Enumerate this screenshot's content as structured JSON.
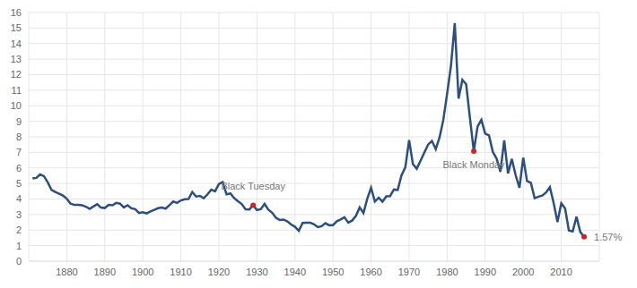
{
  "chart_data": {
    "type": "line",
    "x": [
      1871,
      1872,
      1873,
      1874,
      1875,
      1876,
      1877,
      1878,
      1879,
      1880,
      1881,
      1882,
      1883,
      1884,
      1885,
      1886,
      1887,
      1888,
      1889,
      1890,
      1891,
      1892,
      1893,
      1894,
      1895,
      1896,
      1897,
      1898,
      1899,
      1900,
      1901,
      1902,
      1903,
      1904,
      1905,
      1906,
      1907,
      1908,
      1909,
      1910,
      1911,
      1912,
      1913,
      1914,
      1915,
      1916,
      1917,
      1918,
      1919,
      1920,
      1921,
      1922,
      1923,
      1924,
      1925,
      1926,
      1927,
      1928,
      1929,
      1930,
      1931,
      1932,
      1933,
      1934,
      1935,
      1936,
      1937,
      1938,
      1939,
      1940,
      1941,
      1942,
      1943,
      1944,
      1945,
      1946,
      1947,
      1948,
      1949,
      1950,
      1951,
      1952,
      1953,
      1954,
      1955,
      1956,
      1957,
      1958,
      1959,
      1960,
      1961,
      1962,
      1963,
      1964,
      1965,
      1966,
      1967,
      1968,
      1969,
      1970,
      1971,
      1972,
      1973,
      1974,
      1975,
      1976,
      1977,
      1978,
      1979,
      1980,
      1981,
      1982,
      1983,
      1984,
      1985,
      1986,
      1987,
      1988,
      1989,
      1990,
      1991,
      1992,
      1993,
      1994,
      1995,
      1996,
      1997,
      1998,
      1999,
      2000,
      2001,
      2002,
      2003,
      2004,
      2005,
      2006,
      2007,
      2008,
      2009,
      2010,
      2011,
      2012,
      2013,
      2014,
      2015,
      2016
    ],
    "values": [
      5.32,
      5.36,
      5.58,
      5.47,
      5.07,
      4.59,
      4.45,
      4.34,
      4.22,
      4.02,
      3.7,
      3.62,
      3.63,
      3.6,
      3.51,
      3.37,
      3.52,
      3.67,
      3.45,
      3.42,
      3.62,
      3.6,
      3.75,
      3.7,
      3.46,
      3.6,
      3.4,
      3.35,
      3.1,
      3.15,
      3.07,
      3.2,
      3.3,
      3.41,
      3.45,
      3.38,
      3.6,
      3.84,
      3.75,
      3.91,
      3.98,
      4.0,
      4.45,
      4.16,
      4.2,
      4.05,
      4.3,
      4.6,
      4.5,
      4.97,
      5.09,
      4.3,
      4.36,
      4.06,
      3.86,
      3.68,
      3.34,
      3.33,
      3.6,
      3.29,
      3.34,
      3.68,
      3.31,
      3.12,
      2.79,
      2.65,
      2.68,
      2.56,
      2.36,
      2.21,
      1.95,
      2.46,
      2.47,
      2.48,
      2.37,
      2.19,
      2.25,
      2.44,
      2.31,
      2.32,
      2.57,
      2.68,
      2.83,
      2.48,
      2.61,
      2.9,
      3.46,
      3.09,
      4.02,
      4.72,
      3.84,
      4.08,
      3.83,
      4.17,
      4.19,
      4.61,
      4.58,
      5.53,
      6.04,
      7.79,
      6.24,
      5.95,
      6.46,
      6.99,
      7.5,
      7.74,
      7.21,
      7.96,
      9.1,
      10.8,
      12.57,
      15.32,
      10.46,
      11.67,
      11.38,
      9.19,
      7.08,
      8.67,
      9.09,
      8.21,
      8.09,
      7.03,
      6.6,
      5.75,
      7.78,
      5.65,
      6.58,
      5.54,
      4.72,
      6.66,
      5.16,
      5.04,
      4.05,
      4.15,
      4.22,
      4.42,
      4.76,
      3.74,
      2.52,
      3.73,
      3.39,
      1.97,
      1.91,
      2.86,
      1.88,
      1.57
    ],
    "color": "#2c4f82",
    "xlim": [
      1870,
      2020
    ],
    "xticks": [
      1880,
      1890,
      1900,
      1910,
      1920,
      1930,
      1940,
      1950,
      1960,
      1970,
      1980,
      1990,
      2000,
      2010
    ],
    "ylim": [
      0,
      16
    ],
    "yticks": [
      0,
      1,
      2,
      3,
      4,
      5,
      6,
      7,
      8,
      9,
      10,
      11,
      12,
      13,
      14,
      15,
      16
    ],
    "grid": true,
    "annotations": [
      {
        "text": "Black Tuesday",
        "x": 1929,
        "y": 3.6
      },
      {
        "text": "Black Monday",
        "x": 1987,
        "y": 7.08
      },
      {
        "text": "1.57%",
        "x": 2016,
        "y": 1.57
      }
    ]
  }
}
